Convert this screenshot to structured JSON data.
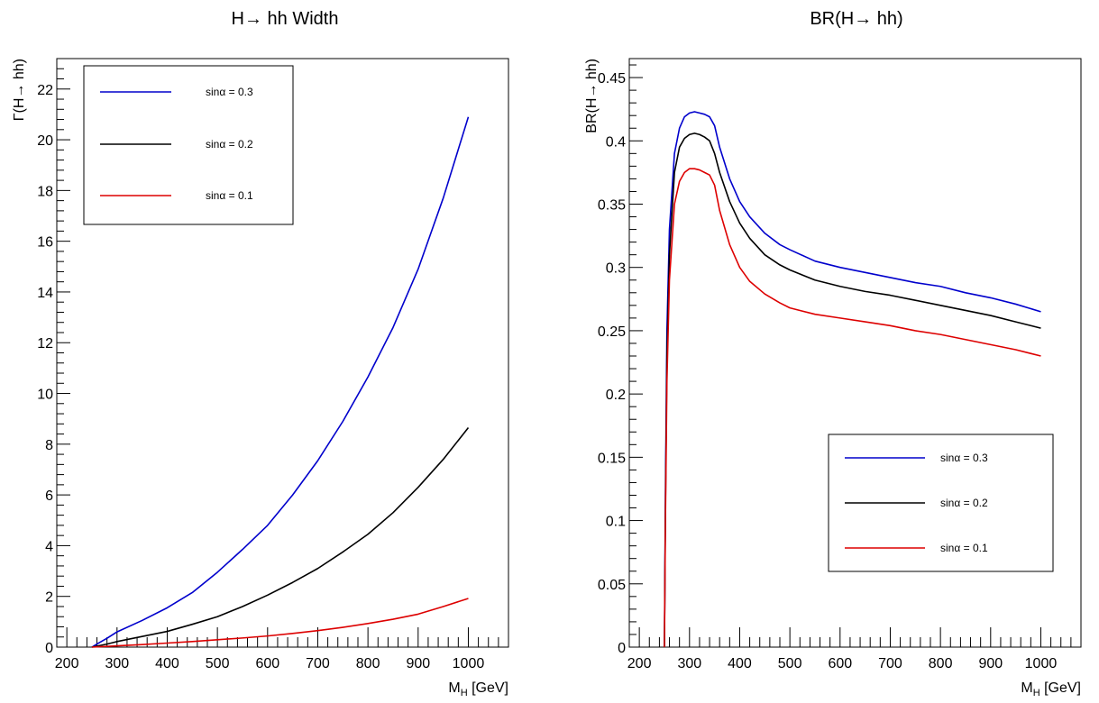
{
  "chart_data": [
    {
      "type": "line",
      "title": "H→ hh Width",
      "xlabel": "M_H [GeV]",
      "ylabel": "Γ(H→ hh)",
      "xlim": [
        180,
        1080
      ],
      "ylim": [
        0,
        23.2
      ],
      "x_ticks": [
        "200",
        "300",
        "400",
        "500",
        "600",
        "700",
        "800",
        "900",
        "1000"
      ],
      "y_ticks": [
        "0",
        "2",
        "4",
        "6",
        "8",
        "10",
        "12",
        "14",
        "16",
        "18",
        "20",
        "22"
      ],
      "legend_position": "top-left",
      "series": [
        {
          "name": "sinα = 0.3",
          "color": "#0000cc",
          "x": [
            250,
            260,
            280,
            300,
            350,
            400,
            450,
            500,
            550,
            600,
            650,
            700,
            750,
            800,
            850,
            900,
            950,
            1000
          ],
          "y": [
            0.0,
            0.12,
            0.35,
            0.6,
            1.05,
            1.55,
            2.15,
            2.95,
            3.85,
            4.8,
            6.0,
            7.35,
            8.9,
            10.65,
            12.6,
            14.9,
            17.7,
            20.9
          ]
        },
        {
          "name": "sinα = 0.2",
          "color": "#000000",
          "x": [
            250,
            260,
            280,
            300,
            350,
            400,
            450,
            500,
            550,
            600,
            650,
            700,
            750,
            800,
            850,
            900,
            950,
            1000
          ],
          "y": [
            0.0,
            0.04,
            0.12,
            0.22,
            0.42,
            0.62,
            0.9,
            1.2,
            1.6,
            2.05,
            2.55,
            3.1,
            3.75,
            4.45,
            5.3,
            6.3,
            7.4,
            8.65
          ]
        },
        {
          "name": "sinα = 0.1",
          "color": "#dd0000",
          "x": [
            250,
            300,
            350,
            400,
            450,
            500,
            550,
            600,
            650,
            700,
            750,
            800,
            850,
            900,
            950,
            1000
          ],
          "y": [
            0.0,
            0.05,
            0.1,
            0.16,
            0.22,
            0.29,
            0.36,
            0.44,
            0.54,
            0.65,
            0.78,
            0.93,
            1.1,
            1.3,
            1.6,
            1.92
          ]
        }
      ]
    },
    {
      "type": "line",
      "title": "BR(H→ hh)",
      "xlabel": "M_H [GeV]",
      "ylabel": "BR(H→ hh)",
      "xlim": [
        180,
        1080
      ],
      "ylim": [
        0,
        0.465
      ],
      "x_ticks": [
        "200",
        "300",
        "400",
        "500",
        "600",
        "700",
        "800",
        "900",
        "1000"
      ],
      "y_ticks": [
        "0",
        "0.05",
        "0.1",
        "0.15",
        "0.2",
        "0.25",
        "0.3",
        "0.35",
        "0.4",
        "0.45"
      ],
      "legend_position": "bottom-right",
      "series": [
        {
          "name": "sinα = 0.3",
          "color": "#0000cc",
          "x": [
            250,
            252,
            255,
            260,
            270,
            280,
            290,
            300,
            310,
            320,
            330,
            340,
            350,
            360,
            380,
            400,
            420,
            450,
            480,
            500,
            550,
            600,
            650,
            700,
            750,
            800,
            850,
            900,
            950,
            1000
          ],
          "y": [
            0.0,
            0.12,
            0.25,
            0.33,
            0.39,
            0.41,
            0.419,
            0.422,
            0.423,
            0.422,
            0.421,
            0.419,
            0.412,
            0.395,
            0.37,
            0.352,
            0.34,
            0.327,
            0.318,
            0.314,
            0.305,
            0.3,
            0.296,
            0.292,
            0.288,
            0.285,
            0.28,
            0.276,
            0.271,
            0.265
          ]
        },
        {
          "name": "sinα = 0.2",
          "color": "#000000",
          "x": [
            250,
            252,
            255,
            260,
            270,
            280,
            290,
            300,
            310,
            320,
            330,
            340,
            350,
            360,
            380,
            400,
            420,
            450,
            480,
            500,
            550,
            600,
            650,
            700,
            750,
            800,
            850,
            900,
            950,
            1000
          ],
          "y": [
            0.0,
            0.11,
            0.23,
            0.31,
            0.375,
            0.395,
            0.402,
            0.405,
            0.406,
            0.405,
            0.403,
            0.4,
            0.39,
            0.375,
            0.352,
            0.335,
            0.323,
            0.31,
            0.302,
            0.298,
            0.29,
            0.285,
            0.281,
            0.278,
            0.274,
            0.27,
            0.266,
            0.262,
            0.257,
            0.252
          ]
        },
        {
          "name": "sinα = 0.1",
          "color": "#dd0000",
          "x": [
            250,
            252,
            255,
            260,
            270,
            280,
            290,
            300,
            310,
            320,
            330,
            340,
            350,
            360,
            380,
            400,
            420,
            450,
            480,
            500,
            550,
            600,
            650,
            700,
            750,
            800,
            850,
            900,
            950,
            1000
          ],
          "y": [
            0.0,
            0.1,
            0.21,
            0.29,
            0.35,
            0.368,
            0.375,
            0.378,
            0.378,
            0.377,
            0.375,
            0.373,
            0.365,
            0.345,
            0.318,
            0.3,
            0.289,
            0.279,
            0.272,
            0.268,
            0.263,
            0.26,
            0.257,
            0.254,
            0.25,
            0.247,
            0.243,
            0.239,
            0.235,
            0.23
          ]
        }
      ]
    }
  ]
}
